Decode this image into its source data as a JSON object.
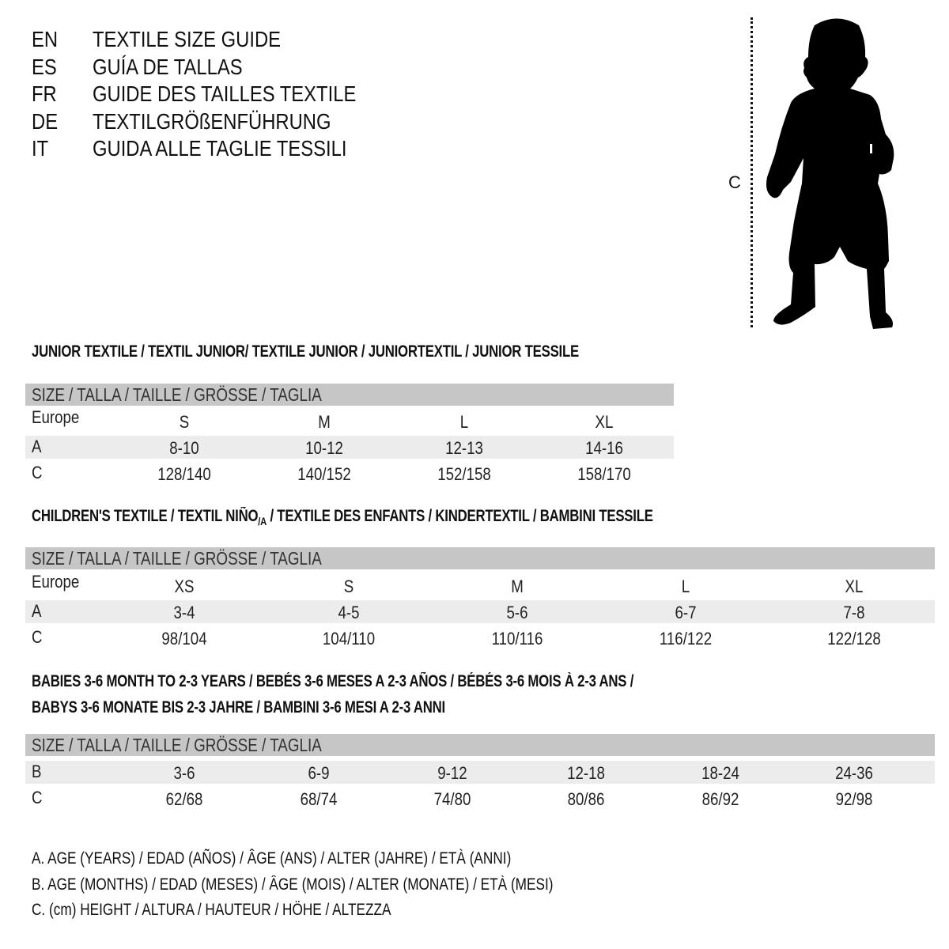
{
  "header": {
    "languages": [
      {
        "code": "EN",
        "title": "TEXTILE SIZE GUIDE"
      },
      {
        "code": "ES",
        "title": "GUÍA DE TALLAS"
      },
      {
        "code": "FR",
        "title": "GUIDE DES TAILLES TEXTILE"
      },
      {
        "code": "DE",
        "title": "TEXTILGRÖßENFÜHRUNG"
      },
      {
        "code": "IT",
        "title": "GUIDA ALLE TAGLIE TESSILI"
      }
    ]
  },
  "figure": {
    "measure_label": "C",
    "icon": "child-silhouette-icon"
  },
  "colors": {
    "header_bar": "#c6c6c6",
    "alt_row": "#ececec",
    "text": "#111111"
  },
  "sections": [
    {
      "title": "JUNIOR TEXTILE / TEXTIL JUNIOR/ TEXTILE JUNIOR / JUNIORTEXTIL / JUNIOR TESSILE",
      "title_line2": "",
      "size_header": "SIZE / TALLA / TAILLE / GRÖSSE / TAGLIA",
      "rows": [
        {
          "label": "Europe",
          "values": [
            "S",
            "M",
            "L",
            "XL"
          ]
        },
        {
          "label": "A",
          "values": [
            "8-10",
            "10-12",
            "12-13",
            "14-16"
          ]
        },
        {
          "label": "C",
          "values": [
            "128/140",
            "140/152",
            "152/158",
            "158/170"
          ]
        }
      ]
    },
    {
      "title": "CHILDREN'S TEXTILE / TEXTIL NIÑO",
      "title_sub": "/A",
      "title_rest": " / TEXTILE DES ENFANTS / KINDERTEXTIL / BAMBINI TESSILE",
      "size_header": "SIZE / TALLA / TAILLE / GRÖSSE / TAGLIA",
      "rows": [
        {
          "label": "Europe",
          "values": [
            "XS",
            "S",
            "M",
            "L",
            "XL"
          ]
        },
        {
          "label": "A",
          "values": [
            "3-4",
            "4-5",
            "5-6",
            "6-7",
            "7-8"
          ]
        },
        {
          "label": "C",
          "values": [
            "98/104",
            "104/110",
            "110/116",
            "116/122",
            "122/128"
          ]
        }
      ]
    },
    {
      "title": "BABIES 3-6 MONTH TO 2-3 YEARS / BEBÉS 3-6 MESES A 2-3 AÑOS / BÉBÉS 3-6 MOIS À 2-3 ANS /",
      "title_line2": "BABYS 3-6 MONATE BIS 2-3 JAHRE / BAMBINI 3-6 MESI A 2-3 ANNI",
      "size_header": "SIZE / TALLA / TAILLE / GRÖSSE / TAGLIA",
      "rows": [
        {
          "label": "B",
          "values": [
            "3-6",
            "6-9",
            "9-12",
            "12-18",
            "18-24",
            "24-36"
          ]
        },
        {
          "label": "C",
          "values": [
            "62/68",
            "68/74",
            "74/80",
            "80/86",
            "86/92",
            "92/98"
          ]
        }
      ]
    }
  ],
  "legend": [
    "A. AGE (YEARS) / EDAD (AÑOS) / ÂGE (ANS) / ALTER (JAHRE) / ETÀ (ANNI)",
    "B. AGE (MONTHS) / EDAD (MESES) / ÂGE (MOIS) / ALTER (MONATE) / ETÀ (MESI)",
    "C. (cm) HEIGHT / ALTURA / HAUTEUR / HÖHE / ALTEZZA"
  ]
}
